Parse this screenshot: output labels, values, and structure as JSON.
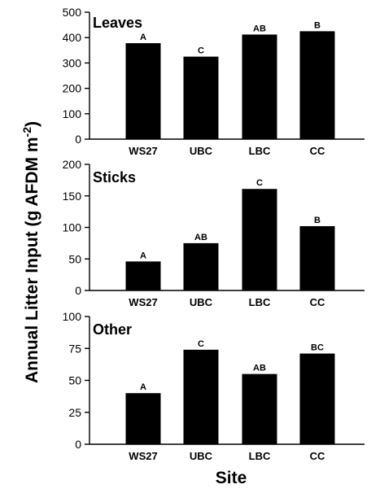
{
  "chart_data": {
    "type": "bar",
    "ylabel_main": "Annual Litter Input (g AFDM m",
    "ylabel_sup": "-2",
    "ylabel_close": ")",
    "xlabel": "Site",
    "categories": [
      "WS27",
      "UBC",
      "LBC",
      "CC"
    ],
    "colors": {
      "bar": "#000000"
    },
    "panels": [
      {
        "title": "Leaves",
        "ylim": [
          0,
          500
        ],
        "yticks": [
          0,
          100,
          200,
          300,
          400,
          500
        ],
        "values": [
          378,
          325,
          412,
          425
        ],
        "letters": [
          "A",
          "C",
          "AB",
          "B"
        ]
      },
      {
        "title": "Sticks",
        "ylim": [
          0,
          200
        ],
        "yticks": [
          0,
          50,
          100,
          150,
          200
        ],
        "values": [
          46,
          75,
          161,
          102
        ],
        "letters": [
          "A",
          "AB",
          "C",
          "B"
        ]
      },
      {
        "title": "Other",
        "ylim": [
          0,
          100
        ],
        "yticks": [
          0,
          25,
          50,
          75,
          100
        ],
        "values": [
          40,
          74,
          55,
          71
        ],
        "letters": [
          "A",
          "C",
          "AB",
          "BC"
        ]
      }
    ]
  }
}
